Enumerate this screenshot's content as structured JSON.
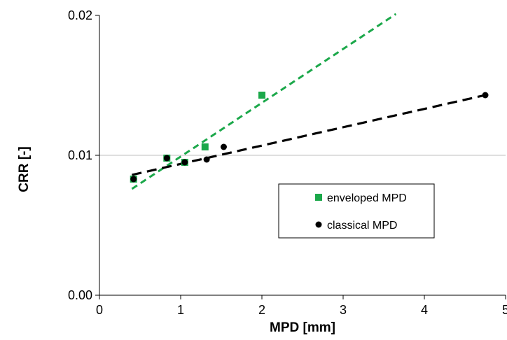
{
  "chart_data": {
    "type": "scatter",
    "xlabel": "MPD [mm]",
    "ylabel": "CRR [-]",
    "xlim": [
      0,
      5
    ],
    "ylim": [
      0,
      0.02
    ],
    "x_ticks": [
      0,
      1,
      2,
      3,
      4,
      5
    ],
    "y_ticks": [
      0,
      0.01,
      0.02
    ],
    "x_tick_labels": [
      "0",
      "1",
      "2",
      "3",
      "4",
      "5"
    ],
    "y_tick_labels": [
      "0.00",
      "0.01",
      "0.02"
    ],
    "grid": "horizontal line at 0.01",
    "legend_position": "center-right",
    "series": [
      {
        "name": "enveloped MPD",
        "marker": "square",
        "color": "#1ba84a",
        "points": [
          {
            "x": 0.42,
            "y": 0.0083
          },
          {
            "x": 0.83,
            "y": 0.0098
          },
          {
            "x": 1.05,
            "y": 0.0095
          },
          {
            "x": 1.3,
            "y": 0.0106
          },
          {
            "x": 2.0,
            "y": 0.0143
          }
        ],
        "trendline": {
          "x": [
            0.4,
            3.65
          ],
          "y": [
            0.0076,
            0.0201
          ],
          "style": "dashed",
          "color": "#1ba84a"
        }
      },
      {
        "name": "classical MPD",
        "marker": "circle",
        "color": "#000000",
        "points": [
          {
            "x": 0.42,
            "y": 0.0083
          },
          {
            "x": 0.83,
            "y": 0.0098
          },
          {
            "x": 1.05,
            "y": 0.0095
          },
          {
            "x": 1.32,
            "y": 0.0097
          },
          {
            "x": 1.53,
            "y": 0.0106
          },
          {
            "x": 4.75,
            "y": 0.0143
          }
        ],
        "trendline": {
          "x": [
            0.4,
            4.75
          ],
          "y": [
            0.0086,
            0.0143
          ],
          "style": "dashed",
          "color": "#000000"
        }
      }
    ]
  }
}
